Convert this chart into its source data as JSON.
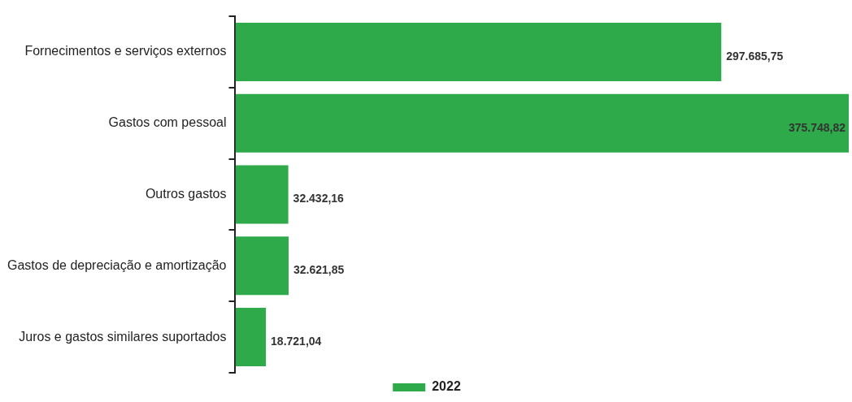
{
  "chart_data": {
    "type": "bar",
    "orientation": "horizontal",
    "categories": [
      "Fornecimentos e serviços externos",
      "Gastos com pessoal",
      "Outros gastos",
      "Gastos de depreciação e amortização",
      "Juros e gastos similares suportados"
    ],
    "series": [
      {
        "name": "2022",
        "color": "#2eaa4a",
        "values": [
          297685.75,
          375748.82,
          32432.16,
          32621.85,
          18721.04
        ],
        "value_labels": [
          "297.685,75",
          "375.748,82",
          "32.432,16",
          "32.621,85",
          "18.721,04"
        ]
      }
    ],
    "legend": "bottom",
    "grid": false
  }
}
